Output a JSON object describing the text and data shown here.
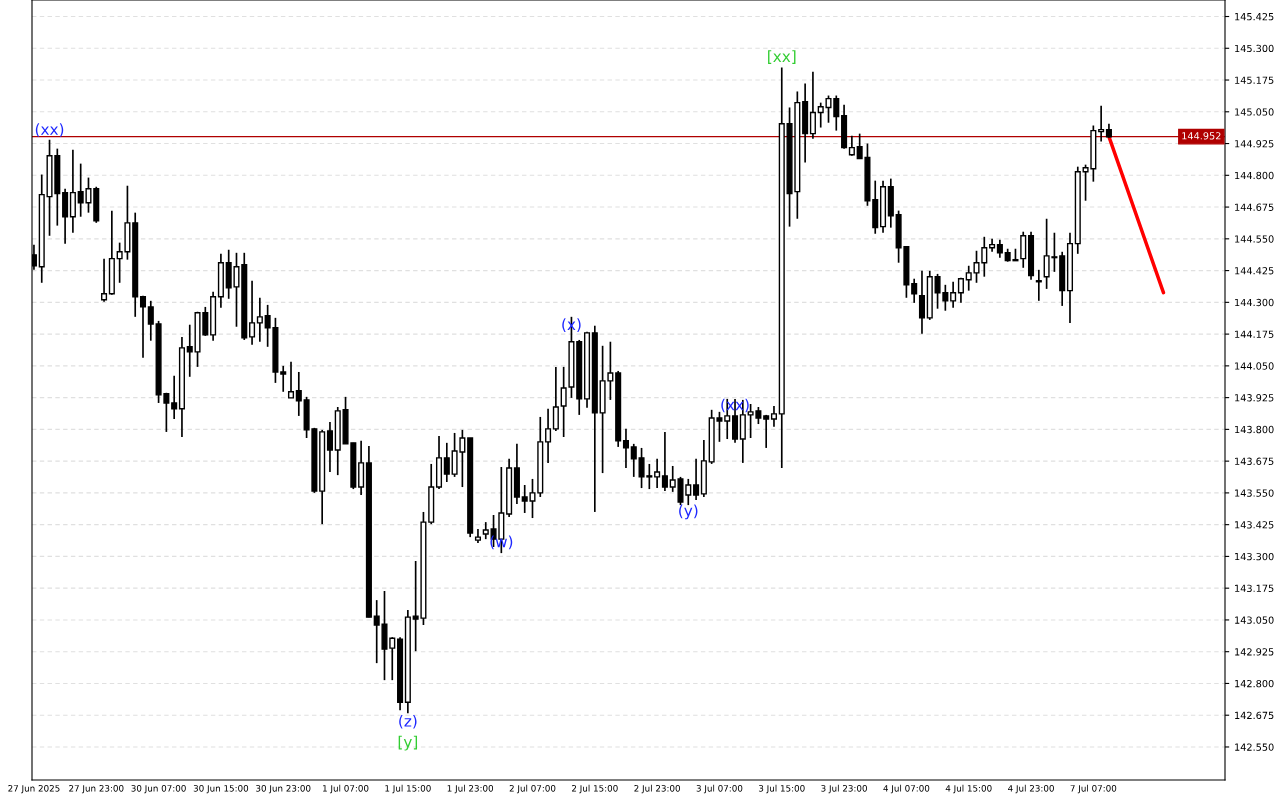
{
  "chart_data": {
    "type": "candlestick",
    "categories": [
      "27 Jun 2025",
      null,
      null,
      null,
      null,
      null,
      null,
      null,
      "27 Jun 23:00",
      null,
      null,
      null,
      null,
      null,
      null,
      null,
      "30 Jun 07:00",
      null,
      null,
      null,
      null,
      null,
      null,
      null,
      "30 Jun 15:00",
      null,
      null,
      null,
      null,
      null,
      null,
      null,
      "30 Jun 23:00",
      null,
      null,
      null,
      null,
      null,
      null,
      null,
      "1 Jul 07:00",
      null,
      null,
      null,
      null,
      null,
      null,
      null,
      "1 Jul 15:00",
      null,
      null,
      null,
      null,
      null,
      null,
      null,
      "1 Jul 23:00",
      null,
      null,
      null,
      null,
      null,
      null,
      null,
      "2 Jul 07:00",
      null,
      null,
      null,
      null,
      null,
      null,
      null,
      "2 Jul 15:00",
      null,
      null,
      null,
      null,
      null,
      null,
      null,
      "2 Jul 23:00",
      null,
      null,
      null,
      null,
      null,
      null,
      null,
      "3 Jul 07:00",
      null,
      null,
      null,
      null,
      null,
      null,
      null,
      "3 Jul 15:00",
      null,
      null,
      null,
      null,
      null,
      null,
      null,
      "3 Jul 23:00",
      null,
      null,
      null,
      null,
      null,
      null,
      null,
      "4 Jul 07:00",
      null,
      null,
      null,
      null,
      null,
      null,
      null,
      "4 Jul 15:00",
      null,
      null,
      null,
      null,
      null,
      null,
      null,
      "4 Jul 23:00",
      null,
      null,
      null,
      null,
      null,
      null,
      null,
      "7 Jul 07:00",
      null,
      null,
      null,
      null,
      null,
      null,
      null,
      null,
      null,
      null,
      null,
      null,
      null,
      null,
      null,
      null
    ],
    "ohlc": [
      [
        144.487,
        144.527,
        144.428,
        144.444
      ],
      [
        144.44,
        144.803,
        144.377,
        144.724
      ],
      [
        144.716,
        144.94,
        144.562,
        144.877
      ],
      [
        144.877,
        144.905,
        144.602,
        144.728
      ],
      [
        144.732,
        144.747,
        144.531,
        144.637
      ],
      [
        144.637,
        144.901,
        144.574,
        144.732
      ],
      [
        144.736,
        144.846,
        144.637,
        144.692
      ],
      [
        144.692,
        144.791,
        144.653,
        144.747
      ],
      [
        144.747,
        144.755,
        144.613,
        144.621
      ],
      [
        144.31,
        144.472,
        144.302,
        144.334
      ],
      [
        144.334,
        144.661,
        144.33,
        144.472
      ],
      [
        144.472,
        144.535,
        144.377,
        144.499
      ],
      [
        144.499,
        144.759,
        144.468,
        144.613
      ],
      [
        144.613,
        144.653,
        144.243,
        144.322
      ],
      [
        144.322,
        144.326,
        144.082,
        144.282
      ],
      [
        144.282,
        144.306,
        144.149,
        144.215
      ],
      [
        144.215,
        144.227,
        143.904,
        143.936
      ],
      [
        143.94,
        143.944,
        143.79,
        143.904
      ],
      [
        143.904,
        144.011,
        143.841,
        143.881
      ],
      [
        143.881,
        144.164,
        143.77,
        144.121
      ],
      [
        144.125,
        144.212,
        144.007,
        144.105
      ],
      [
        144.105,
        144.263,
        144.046,
        144.259
      ],
      [
        144.259,
        144.282,
        144.168,
        144.172
      ],
      [
        144.172,
        144.342,
        144.149,
        144.322
      ],
      [
        144.322,
        144.491,
        144.279,
        144.456
      ],
      [
        144.456,
        144.507,
        144.314,
        144.357
      ],
      [
        144.361,
        144.495,
        144.204,
        144.44
      ],
      [
        144.448,
        144.495,
        144.152,
        144.16
      ],
      [
        144.164,
        144.385,
        144.133,
        144.219
      ],
      [
        144.219,
        144.318,
        144.145,
        144.243
      ],
      [
        144.247,
        144.29,
        144.125,
        144.2
      ],
      [
        144.2,
        144.239,
        143.983,
        144.026
      ],
      [
        144.026,
        144.05,
        143.948,
        144.018
      ],
      [
        143.924,
        144.066,
        143.924,
        143.948
      ],
      [
        143.952,
        144.026,
        143.853,
        143.912
      ],
      [
        143.916,
        143.928,
        143.766,
        143.798
      ],
      [
        143.802,
        143.806,
        143.55,
        143.557
      ],
      [
        143.557,
        143.798,
        143.427,
        143.79
      ],
      [
        143.794,
        143.829,
        143.632,
        143.719
      ],
      [
        143.719,
        143.888,
        143.62,
        143.873
      ],
      [
        143.877,
        143.928,
        143.743,
        143.743
      ],
      [
        143.747,
        143.747,
        143.565,
        143.573
      ],
      [
        143.573,
        143.755,
        143.542,
        143.668
      ],
      [
        143.668,
        143.735,
        143.061,
        143.061
      ],
      [
        143.065,
        143.128,
        142.88,
        143.03
      ],
      [
        143.033,
        143.164,
        142.813,
        142.935
      ],
      [
        142.939,
        142.982,
        142.813,
        142.978
      ],
      [
        142.974,
        142.982,
        142.695,
        142.726
      ],
      [
        142.726,
        143.089,
        142.683,
        143.061
      ],
      [
        143.065,
        143.282,
        142.927,
        143.053
      ],
      [
        143.057,
        143.475,
        143.03,
        143.435
      ],
      [
        143.435,
        143.664,
        143.427,
        143.573
      ],
      [
        143.573,
        143.774,
        143.565,
        143.688
      ],
      [
        143.688,
        143.747,
        143.593,
        143.624
      ],
      [
        143.624,
        143.786,
        143.613,
        143.715
      ],
      [
        143.711,
        143.798,
        143.573,
        143.766
      ],
      [
        143.766,
        143.766,
        143.376,
        143.392
      ],
      [
        143.364,
        143.408,
        143.353,
        143.376
      ],
      [
        143.388,
        143.435,
        143.368,
        143.404
      ],
      [
        143.408,
        143.463,
        143.337,
        143.368
      ],
      [
        143.368,
        143.652,
        143.313,
        143.471
      ],
      [
        143.467,
        143.684,
        143.455,
        143.648
      ],
      [
        143.648,
        143.743,
        143.506,
        143.534
      ],
      [
        143.534,
        143.581,
        143.471,
        143.518
      ],
      [
        143.518,
        143.605,
        143.451,
        143.55
      ],
      [
        143.55,
        143.849,
        143.534,
        143.751
      ],
      [
        143.751,
        143.881,
        143.668,
        143.802
      ],
      [
        143.802,
        144.046,
        143.794,
        143.888
      ],
      [
        143.892,
        144.046,
        143.77,
        143.963
      ],
      [
        143.967,
        144.243,
        143.924,
        144.145
      ],
      [
        144.145,
        144.152,
        143.857,
        143.92
      ],
      [
        143.92,
        144.184,
        143.885,
        144.18
      ],
      [
        144.18,
        144.208,
        143.475,
        143.865
      ],
      [
        143.865,
        144.129,
        143.628,
        143.991
      ],
      [
        143.991,
        144.145,
        143.916,
        144.022
      ],
      [
        144.022,
        144.03,
        143.731,
        143.755
      ],
      [
        143.755,
        143.802,
        143.648,
        143.727
      ],
      [
        143.731,
        143.743,
        143.613,
        143.684
      ],
      [
        143.688,
        143.727,
        143.569,
        143.613
      ],
      [
        143.617,
        143.664,
        143.565,
        143.613
      ],
      [
        143.613,
        143.684,
        143.569,
        143.632
      ],
      [
        143.617,
        143.79,
        143.557,
        143.573
      ],
      [
        143.573,
        143.656,
        143.554,
        143.601
      ],
      [
        143.605,
        143.613,
        143.502,
        143.514
      ],
      [
        143.542,
        143.605,
        143.502,
        143.581
      ],
      [
        143.581,
        143.684,
        143.522,
        143.542
      ],
      [
        143.546,
        143.758,
        143.534,
        143.676
      ],
      [
        143.672,
        143.877,
        143.664,
        143.845
      ],
      [
        143.845,
        143.869,
        143.751,
        143.833
      ],
      [
        143.833,
        143.92,
        143.762,
        143.853
      ],
      [
        143.853,
        143.92,
        143.747,
        143.762
      ],
      [
        143.762,
        143.916,
        143.668,
        143.857
      ],
      [
        143.857,
        143.9,
        143.766,
        143.869
      ],
      [
        143.873,
        143.888,
        143.821,
        143.845
      ],
      [
        143.853,
        143.857,
        143.727,
        143.841
      ],
      [
        143.841,
        143.892,
        143.81,
        143.861
      ],
      [
        143.861,
        145.224,
        143.648,
        145.003
      ],
      [
        145.003,
        145.067,
        144.598,
        144.728
      ],
      [
        144.736,
        145.13,
        144.629,
        145.086
      ],
      [
        145.09,
        145.161,
        144.85,
        144.964
      ],
      [
        144.964,
        145.208,
        144.944,
        145.047
      ],
      [
        145.047,
        145.086,
        144.988,
        145.07
      ],
      [
        145.067,
        145.114,
        145.007,
        145.102
      ],
      [
        145.102,
        145.114,
        144.976,
        145.031
      ],
      [
        145.035,
        145.078,
        144.905,
        144.909
      ],
      [
        144.881,
        144.956,
        144.877,
        144.909
      ],
      [
        144.913,
        144.964,
        144.866,
        144.866
      ],
      [
        144.87,
        144.925,
        144.68,
        144.7
      ],
      [
        144.704,
        144.779,
        144.57,
        144.594
      ],
      [
        144.598,
        144.779,
        144.574,
        144.755
      ],
      [
        144.755,
        144.787,
        144.594,
        144.641
      ],
      [
        144.645,
        144.661,
        144.456,
        144.515
      ],
      [
        144.519,
        144.519,
        144.318,
        144.369
      ],
      [
        144.373,
        144.393,
        144.298,
        144.334
      ],
      [
        144.326,
        144.424,
        144.176,
        144.239
      ],
      [
        144.239,
        144.424,
        144.231,
        144.401
      ],
      [
        144.401,
        144.412,
        144.275,
        144.338
      ],
      [
        144.338,
        144.369,
        144.267,
        144.306
      ],
      [
        144.306,
        144.381,
        144.279,
        144.338
      ],
      [
        144.338,
        144.397,
        144.298,
        144.393
      ],
      [
        144.389,
        144.444,
        144.346,
        144.416
      ],
      [
        144.416,
        144.503,
        144.377,
        144.456
      ],
      [
        144.456,
        144.558,
        144.401,
        144.515
      ],
      [
        144.515,
        144.55,
        144.499,
        144.527
      ],
      [
        144.527,
        144.546,
        144.476,
        144.495
      ],
      [
        144.495,
        144.511,
        144.46,
        144.464
      ],
      [
        144.468,
        144.511,
        144.464,
        144.464
      ],
      [
        144.472,
        144.578,
        144.436,
        144.562
      ],
      [
        144.562,
        144.578,
        144.389,
        144.405
      ],
      [
        144.385,
        144.428,
        144.306,
        144.381
      ],
      [
        144.401,
        144.629,
        144.353,
        144.483
      ],
      [
        144.476,
        144.574,
        144.42,
        144.479
      ],
      [
        144.483,
        144.499,
        144.286,
        144.346
      ],
      [
        144.346,
        144.574,
        144.219,
        144.531
      ],
      [
        144.531,
        144.834,
        144.491,
        144.814
      ],
      [
        144.814,
        144.842,
        144.7,
        144.83
      ],
      [
        144.826,
        144.996,
        144.775,
        144.976
      ],
      [
        144.972,
        145.074,
        144.933,
        144.98
      ],
      [
        144.98,
        145.003,
        144.948,
        144.952
      ],
      null,
      null,
      null,
      null,
      null,
      null,
      null,
      null,
      null,
      null,
      null,
      null,
      null,
      null
    ],
    "series": [
      {
        "type": "line",
        "color": "#ff0000",
        "values": [
          null,
          null,
          null,
          null,
          null,
          null,
          null,
          null,
          null,
          null,
          null,
          null,
          null,
          null,
          null,
          null,
          null,
          null,
          null,
          null,
          null,
          null,
          null,
          null,
          null,
          null,
          null,
          null,
          null,
          null,
          null,
          null,
          null,
          null,
          null,
          null,
          null,
          null,
          null,
          null,
          null,
          null,
          null,
          null,
          null,
          null,
          null,
          null,
          null,
          null,
          null,
          null,
          null,
          null,
          null,
          null,
          null,
          null,
          null,
          null,
          null,
          null,
          null,
          null,
          null,
          null,
          null,
          null,
          null,
          null,
          null,
          null,
          null,
          null,
          null,
          null,
          null,
          null,
          null,
          null,
          null,
          null,
          null,
          null,
          null,
          null,
          null,
          null,
          null,
          null,
          null,
          null,
          null,
          null,
          null,
          null,
          null,
          null,
          null,
          null,
          null,
          null,
          null,
          null,
          null,
          null,
          null,
          null,
          null,
          null,
          null,
          null,
          null,
          null,
          null,
          null,
          null,
          null,
          null,
          null,
          null,
          null,
          null,
          null,
          null,
          null,
          null,
          null,
          null,
          null,
          null,
          null,
          null,
          null,
          null,
          null,
          null,
          null,
          144.952,
          null,
          null,
          null,
          null,
          null,
          null,
          144.338,
          null,
          null,
          null,
          null,
          null,
          null,
          null
        ]
      }
    ],
    "ylim": [
      142.42,
      145.49
    ],
    "yticks": [
      {
        "value": 142.55,
        "label": "142.550"
      },
      {
        "value": 142.675,
        "label": "142.675"
      },
      {
        "value": 142.8,
        "label": "142.800"
      },
      {
        "value": 142.925,
        "label": "142.925"
      },
      {
        "value": 143.05,
        "label": "143.050"
      },
      {
        "value": 143.175,
        "label": "143.175"
      },
      {
        "value": 143.3,
        "label": "143.300"
      },
      {
        "value": 143.425,
        "label": "143.425"
      },
      {
        "value": 143.55,
        "label": "143.550"
      },
      {
        "value": 143.675,
        "label": "143.675"
      },
      {
        "value": 143.8,
        "label": "143.800"
      },
      {
        "value": 143.925,
        "label": "143.925"
      },
      {
        "value": 144.05,
        "label": "144.050"
      },
      {
        "value": 144.175,
        "label": "144.175"
      },
      {
        "value": 144.3,
        "label": "144.300"
      },
      {
        "value": 144.425,
        "label": "144.425"
      },
      {
        "value": 144.55,
        "label": "144.550"
      },
      {
        "value": 144.675,
        "label": "144.675"
      },
      {
        "value": 144.8,
        "label": "144.800"
      },
      {
        "value": 144.925,
        "label": "144.925"
      },
      {
        "value": 145.05,
        "label": "145.050"
      },
      {
        "value": 145.175,
        "label": "145.175"
      },
      {
        "value": 145.3,
        "label": "145.300"
      },
      {
        "value": 145.425,
        "label": "145.425"
      }
    ],
    "ref_lines": [
      {
        "axis": "y",
        "value": 144.952,
        "label": "144.952",
        "color": "#b00000"
      }
    ],
    "annotations": [
      "(xx)",
      "(z)",
      "[y]",
      "(w)",
      "(x)",
      "(y)",
      "(xx)",
      "[xx]"
    ],
    "grid": true
  }
}
